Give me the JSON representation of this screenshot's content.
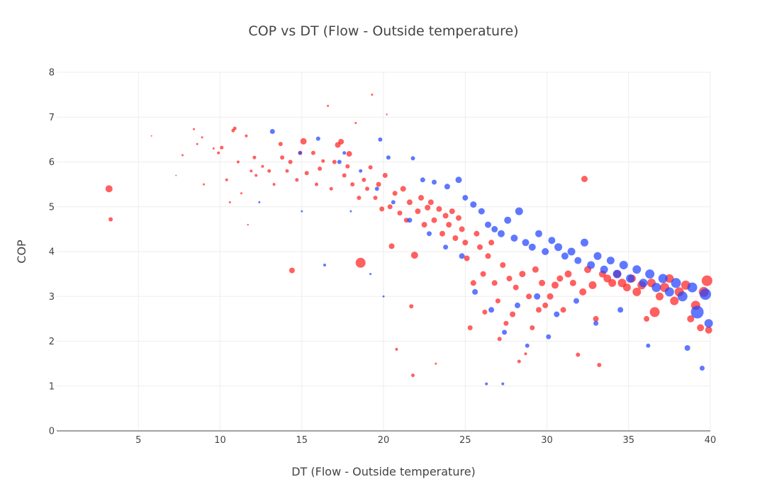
{
  "chart_data": {
    "type": "scatter",
    "title": "COP vs DT (Flow - Outside temperature)",
    "xlabel": "DT (Flow - Outside temperature)",
    "ylabel": "COP",
    "xlim": [
      0,
      40
    ],
    "ylim": [
      0,
      8
    ],
    "x_ticks": [
      5,
      10,
      15,
      20,
      25,
      30,
      35,
      40
    ],
    "y_ticks": [
      0,
      1,
      2,
      3,
      4,
      5,
      6,
      7,
      8
    ],
    "grid": true,
    "legend": "none",
    "colors": {
      "series_red": "#ff2222",
      "series_blue": "#2244ff"
    },
    "series": [
      {
        "color": "#ff2222",
        "points": [
          [
            3.2,
            5.4,
            5
          ],
          [
            3.3,
            4.72,
            3
          ],
          [
            5.8,
            6.58,
            1
          ],
          [
            7.3,
            5.7,
            1
          ],
          [
            7.7,
            6.15,
            1.5
          ],
          [
            8.4,
            6.73,
            1.5
          ],
          [
            8.6,
            6.4,
            1.5
          ],
          [
            8.9,
            6.55,
            1.5
          ],
          [
            9.0,
            5.5,
            1.5
          ],
          [
            9.6,
            6.3,
            1.5
          ],
          [
            9.9,
            6.2,
            2
          ],
          [
            10.1,
            6.32,
            2.5
          ],
          [
            10.4,
            5.6,
            2
          ],
          [
            10.6,
            5.1,
            1.5
          ],
          [
            10.8,
            6.7,
            2.5
          ],
          [
            10.9,
            6.75,
            2.5
          ],
          [
            11.1,
            6.0,
            2
          ],
          [
            11.3,
            5.3,
            1.5
          ],
          [
            11.6,
            6.58,
            2
          ],
          [
            11.7,
            4.6,
            1.2
          ],
          [
            11.9,
            5.8,
            2
          ],
          [
            12.1,
            6.1,
            2.5
          ],
          [
            12.2,
            5.7,
            2
          ],
          [
            12.6,
            5.9,
            2
          ],
          [
            13.0,
            5.8,
            2.5
          ],
          [
            13.3,
            5.5,
            2
          ],
          [
            13.7,
            6.4,
            3
          ],
          [
            13.8,
            6.1,
            3
          ],
          [
            14.1,
            5.8,
            2.5
          ],
          [
            14.3,
            6.0,
            3
          ],
          [
            14.4,
            3.58,
            4
          ],
          [
            14.7,
            5.6,
            2.5
          ],
          [
            14.9,
            6.2,
            3
          ],
          [
            15.1,
            6.46,
            4.5
          ],
          [
            15.3,
            5.75,
            3
          ],
          [
            15.7,
            6.2,
            3
          ],
          [
            15.9,
            5.5,
            2.5
          ],
          [
            16.1,
            5.85,
            3
          ],
          [
            16.3,
            6.02,
            2.5
          ],
          [
            16.6,
            7.25,
            1.5
          ],
          [
            16.8,
            5.4,
            2.5
          ],
          [
            17.0,
            6.0,
            3
          ],
          [
            17.2,
            6.38,
            4
          ],
          [
            17.4,
            6.45,
            4
          ],
          [
            17.6,
            5.7,
            3
          ],
          [
            17.8,
            5.9,
            3
          ],
          [
            17.9,
            6.18,
            4
          ],
          [
            18.1,
            5.5,
            3
          ],
          [
            18.3,
            6.87,
            1.5
          ],
          [
            18.5,
            5.2,
            3
          ],
          [
            18.6,
            3.75,
            7
          ],
          [
            18.8,
            5.6,
            3
          ],
          [
            19.0,
            5.4,
            3
          ],
          [
            19.2,
            5.88,
            3
          ],
          [
            19.3,
            7.5,
            1.5
          ],
          [
            19.5,
            5.2,
            3
          ],
          [
            19.7,
            5.5,
            3.5
          ],
          [
            19.9,
            4.95,
            3.5
          ],
          [
            20.1,
            5.7,
            3.5
          ],
          [
            20.2,
            7.06,
            1.2
          ],
          [
            20.4,
            5.0,
            3.5
          ],
          [
            20.5,
            4.12,
            4
          ],
          [
            20.7,
            5.3,
            3.5
          ],
          [
            20.8,
            1.82,
            2
          ],
          [
            21.0,
            4.86,
            3.5
          ],
          [
            21.2,
            5.4,
            4
          ],
          [
            21.4,
            4.7,
            3.5
          ],
          [
            21.6,
            5.1,
            4
          ],
          [
            21.7,
            2.78,
            3
          ],
          [
            21.8,
            1.24,
            2.5
          ],
          [
            21.9,
            3.92,
            5
          ],
          [
            22.1,
            4.9,
            4
          ],
          [
            22.3,
            5.2,
            4
          ],
          [
            22.5,
            4.6,
            4
          ],
          [
            22.7,
            4.98,
            4
          ],
          [
            22.9,
            5.1,
            4
          ],
          [
            23.1,
            4.7,
            4
          ],
          [
            23.2,
            1.5,
            1.5
          ],
          [
            23.4,
            4.95,
            4
          ],
          [
            23.6,
            4.4,
            4
          ],
          [
            23.8,
            4.8,
            4
          ],
          [
            24.0,
            4.6,
            4
          ],
          [
            24.2,
            4.9,
            4
          ],
          [
            24.4,
            4.3,
            4
          ],
          [
            24.6,
            4.75,
            4
          ],
          [
            24.8,
            4.5,
            4
          ],
          [
            25.0,
            4.2,
            4
          ],
          [
            25.1,
            3.85,
            4
          ],
          [
            25.3,
            2.3,
            3.5
          ],
          [
            25.5,
            3.3,
            4
          ],
          [
            25.7,
            4.4,
            4
          ],
          [
            25.9,
            4.1,
            4
          ],
          [
            26.1,
            3.5,
            4
          ],
          [
            26.2,
            2.65,
            3.5
          ],
          [
            26.4,
            3.9,
            4
          ],
          [
            26.6,
            4.2,
            4
          ],
          [
            26.8,
            3.3,
            4
          ],
          [
            27.0,
            2.9,
            3.5
          ],
          [
            27.1,
            2.05,
            3
          ],
          [
            27.3,
            3.7,
            4
          ],
          [
            27.5,
            2.4,
            3.5
          ],
          [
            27.7,
            3.4,
            4
          ],
          [
            27.9,
            2.6,
            4
          ],
          [
            28.1,
            3.2,
            4
          ],
          [
            28.3,
            1.55,
            2.5
          ],
          [
            28.5,
            3.5,
            4.5
          ],
          [
            28.7,
            1.72,
            2
          ],
          [
            28.9,
            3.0,
            4
          ],
          [
            29.1,
            2.3,
            3.5
          ],
          [
            29.3,
            3.6,
            4.5
          ],
          [
            29.5,
            2.7,
            4
          ],
          [
            29.7,
            3.3,
            4.5
          ],
          [
            29.9,
            2.8,
            4
          ],
          [
            30.2,
            3.0,
            4.5
          ],
          [
            30.5,
            3.25,
            5
          ],
          [
            30.8,
            3.4,
            4.5
          ],
          [
            31.0,
            2.7,
            4
          ],
          [
            31.3,
            3.5,
            5
          ],
          [
            31.6,
            3.3,
            4.5
          ],
          [
            31.9,
            1.7,
            3
          ],
          [
            32.2,
            3.1,
            5
          ],
          [
            32.3,
            5.62,
            4.5
          ],
          [
            32.5,
            3.6,
            5
          ],
          [
            32.8,
            3.25,
            5.5
          ],
          [
            33.0,
            2.5,
            4
          ],
          [
            33.2,
            1.47,
            3
          ],
          [
            33.4,
            3.5,
            5
          ],
          [
            33.7,
            3.4,
            5.5
          ],
          [
            34.0,
            3.3,
            5.5
          ],
          [
            34.3,
            3.5,
            5.5
          ],
          [
            34.6,
            3.3,
            6
          ],
          [
            34.9,
            3.2,
            5.5
          ],
          [
            35.2,
            3.4,
            5.5
          ],
          [
            35.5,
            3.1,
            6
          ],
          [
            35.8,
            3.25,
            6
          ],
          [
            36.1,
            2.5,
            4
          ],
          [
            36.4,
            3.3,
            6
          ],
          [
            36.6,
            2.65,
            7
          ],
          [
            36.9,
            3.0,
            5.5
          ],
          [
            37.2,
            3.2,
            6.5
          ],
          [
            37.5,
            3.4,
            6
          ],
          [
            37.8,
            2.9,
            6
          ],
          [
            38.1,
            3.1,
            6.5
          ],
          [
            38.5,
            3.25,
            6.5
          ],
          [
            38.8,
            2.5,
            5
          ],
          [
            39.1,
            2.8,
            6.5
          ],
          [
            39.4,
            2.3,
            5
          ],
          [
            39.6,
            3.1,
            7
          ],
          [
            39.8,
            3.35,
            7.5
          ],
          [
            39.9,
            2.25,
            5
          ]
        ]
      },
      {
        "color": "#2244ff",
        "points": [
          [
            13.2,
            6.68,
            3.5
          ],
          [
            14.9,
            6.2,
            2.5
          ],
          [
            16.0,
            6.52,
            3
          ],
          [
            17.3,
            6.0,
            3
          ],
          [
            19.8,
            6.5,
            3
          ],
          [
            20.3,
            6.1,
            3
          ],
          [
            21.8,
            6.08,
            3
          ],
          [
            22.4,
            5.6,
            3.5
          ],
          [
            23.1,
            5.55,
            3.5
          ],
          [
            23.9,
            5.45,
            4
          ],
          [
            24.6,
            5.6,
            4.5
          ],
          [
            25.0,
            5.2,
            4
          ],
          [
            25.5,
            5.05,
            4.5
          ],
          [
            26.0,
            4.9,
            4.5
          ],
          [
            26.4,
            4.6,
            4.5
          ],
          [
            26.8,
            4.5,
            4.5
          ],
          [
            27.2,
            4.4,
            5
          ],
          [
            27.6,
            4.7,
            5
          ],
          [
            28.0,
            4.3,
            5
          ],
          [
            28.3,
            4.9,
            5.5
          ],
          [
            28.7,
            4.2,
            5
          ],
          [
            29.1,
            4.1,
            5
          ],
          [
            29.5,
            4.4,
            5
          ],
          [
            29.9,
            4.0,
            5
          ],
          [
            30.3,
            4.25,
            5
          ],
          [
            30.7,
            4.1,
            5.5
          ],
          [
            31.1,
            3.9,
            5
          ],
          [
            31.5,
            4.0,
            5.5
          ],
          [
            31.9,
            3.8,
            5
          ],
          [
            32.3,
            4.2,
            5.5
          ],
          [
            32.7,
            3.7,
            5.5
          ],
          [
            33.1,
            3.9,
            5.5
          ],
          [
            33.5,
            3.6,
            5.5
          ],
          [
            33.9,
            3.8,
            5.5
          ],
          [
            34.3,
            3.5,
            6
          ],
          [
            34.7,
            3.7,
            6
          ],
          [
            35.1,
            3.4,
            6
          ],
          [
            35.5,
            3.6,
            6
          ],
          [
            35.9,
            3.3,
            6
          ],
          [
            36.3,
            3.5,
            6.5
          ],
          [
            36.7,
            3.2,
            6.5
          ],
          [
            37.1,
            3.4,
            6.5
          ],
          [
            37.5,
            3.1,
            6.5
          ],
          [
            37.9,
            3.3,
            7
          ],
          [
            38.3,
            3.0,
            7
          ],
          [
            38.6,
            1.85,
            4
          ],
          [
            38.9,
            3.2,
            7
          ],
          [
            39.2,
            2.65,
            9
          ],
          [
            39.5,
            1.4,
            3.5
          ],
          [
            39.7,
            3.05,
            8
          ],
          [
            39.9,
            2.4,
            6
          ],
          [
            30.1,
            2.1,
            3.5
          ],
          [
            28.8,
            1.9,
            3
          ],
          [
            27.3,
            1.05,
            2
          ],
          [
            26.3,
            1.05,
            2
          ],
          [
            36.2,
            1.9,
            3
          ],
          [
            34.5,
            2.7,
            4
          ],
          [
            33.0,
            2.4,
            3.5
          ],
          [
            31.8,
            2.9,
            4
          ],
          [
            30.6,
            2.6,
            4
          ],
          [
            29.4,
            3.0,
            4.5
          ],
          [
            28.2,
            2.8,
            4
          ],
          [
            27.4,
            2.2,
            3.5
          ],
          [
            26.6,
            2.7,
            4
          ],
          [
            25.6,
            3.1,
            4
          ],
          [
            24.8,
            3.9,
            4
          ],
          [
            23.8,
            4.1,
            3.5
          ],
          [
            22.8,
            4.4,
            3.5
          ],
          [
            21.6,
            4.7,
            3.5
          ],
          [
            20.6,
            5.1,
            3
          ],
          [
            19.6,
            5.4,
            3
          ],
          [
            18.6,
            5.8,
            2.5
          ],
          [
            17.6,
            6.2,
            2.5
          ],
          [
            16.4,
            3.7,
            2
          ],
          [
            15.0,
            4.9,
            1.5
          ],
          [
            12.4,
            5.1,
            1.5
          ],
          [
            18.0,
            4.9,
            1.5
          ],
          [
            19.2,
            3.5,
            1.5
          ],
          [
            20.0,
            3.0,
            1.5
          ]
        ]
      }
    ]
  }
}
